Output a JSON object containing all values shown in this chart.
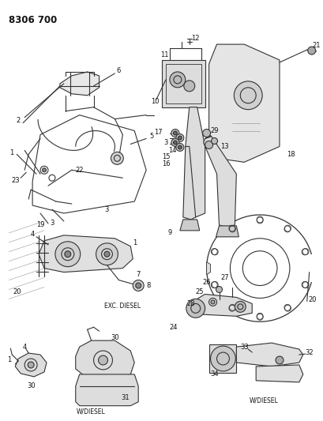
{
  "title": "8306 700",
  "bg_color": "#ffffff",
  "line_color": "#333333",
  "label_color": "#111111",
  "title_fontsize": 8.5,
  "label_fontsize": 6.0,
  "exc_diesel": "EXC. DIESEL",
  "w_diesel_1": "W/DIESEL",
  "w_diesel_2": "W/DIESEL",
  "figsize": [
    4.1,
    5.33
  ],
  "dpi": 100
}
